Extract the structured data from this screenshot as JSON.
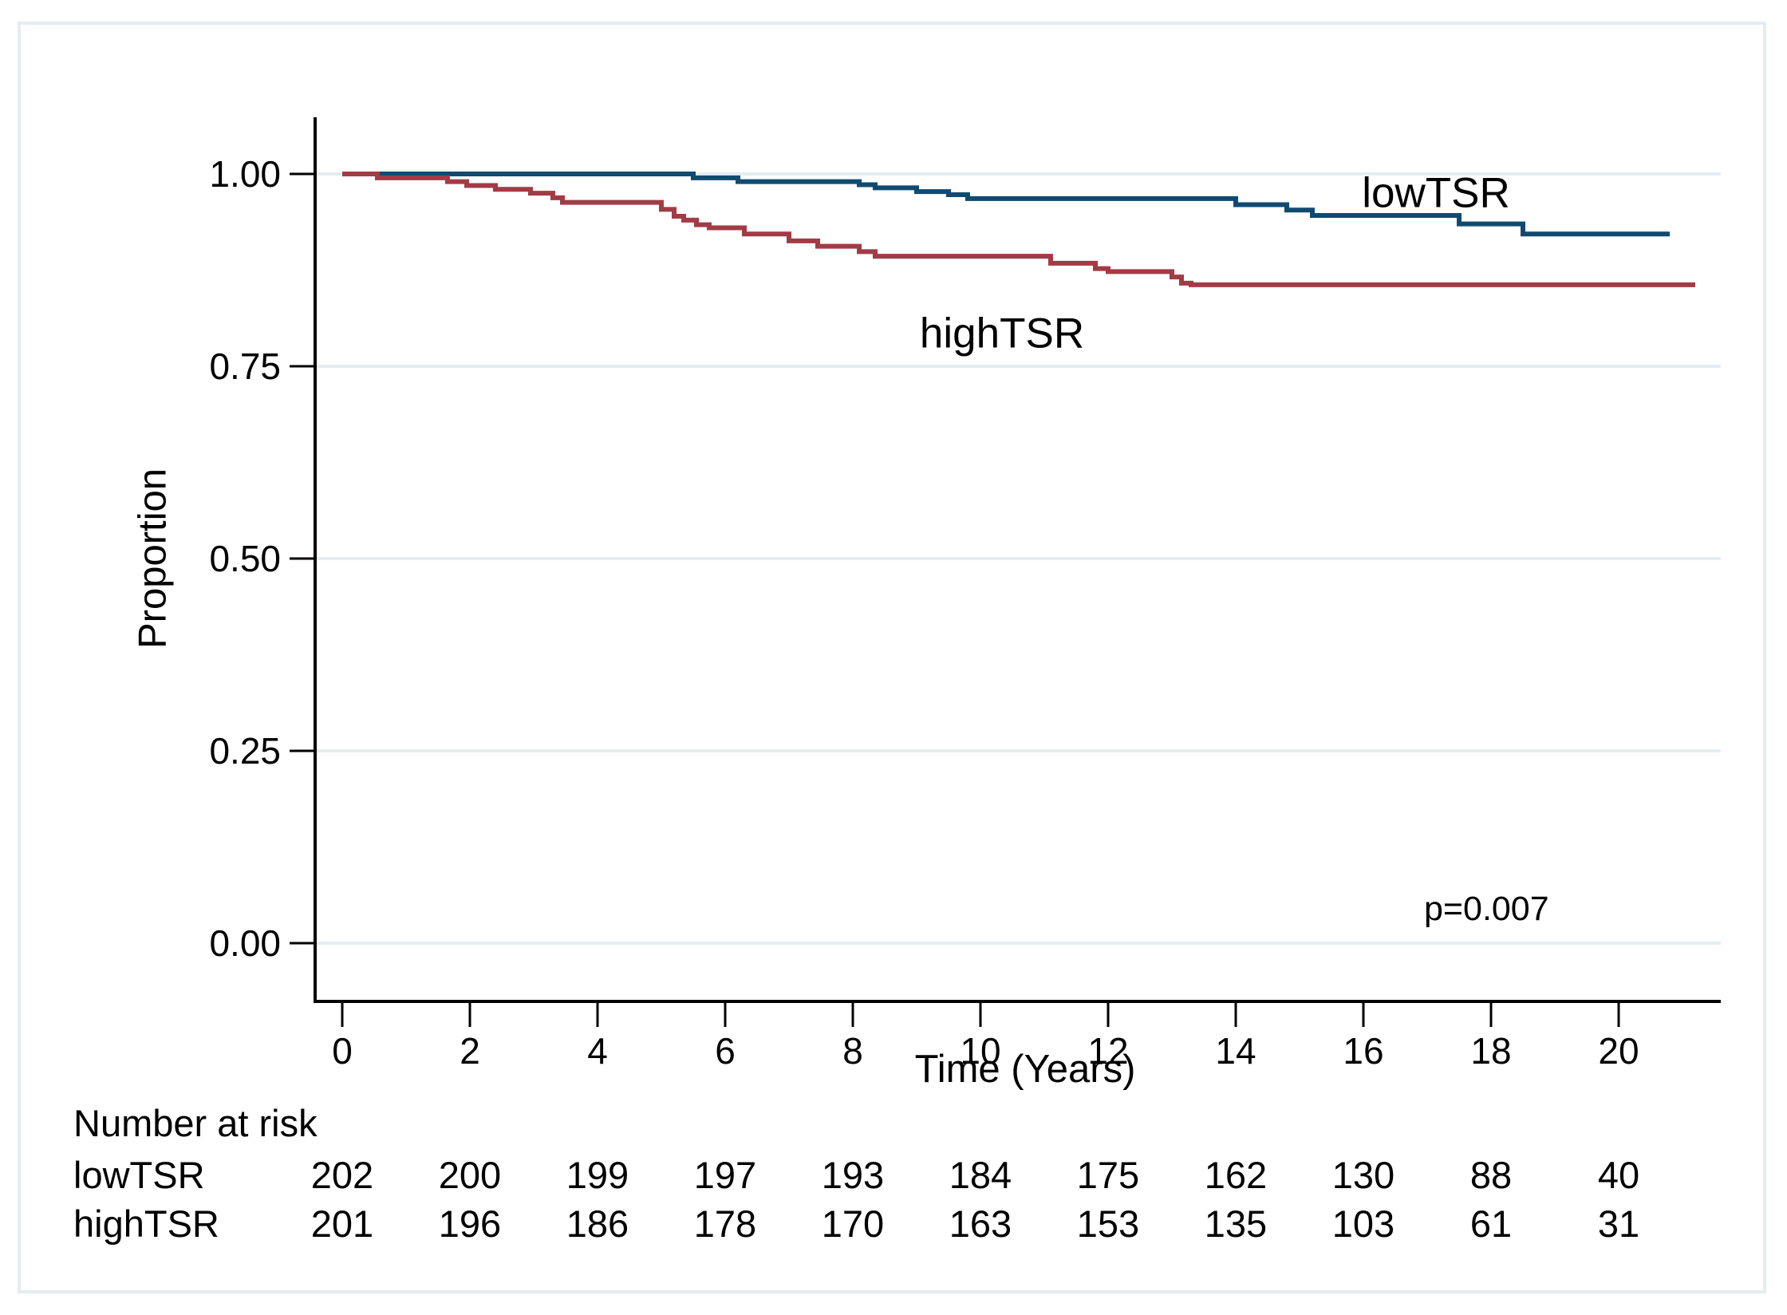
{
  "figure": {
    "background": "#ffffff",
    "frame_border_color": "#e3edf0"
  },
  "chart_data": {
    "type": "line",
    "variant": "kaplan_meier_step_plot",
    "title": "",
    "xlabel": "Time (Years)",
    "ylabel": "Proportion",
    "grid": true,
    "gridline_color": "#e4eef0",
    "axis_color": "#000000",
    "xlim": [
      0,
      21.6
    ],
    "ylim": [
      0,
      1.0
    ],
    "x_ticks": [
      0,
      2,
      4,
      6,
      8,
      10,
      12,
      14,
      16,
      18,
      20
    ],
    "y_ticks": [
      "0.00",
      "0.25",
      "0.50",
      "0.75",
      "1.00"
    ],
    "y_tick_values": [
      0,
      0.25,
      0.5,
      0.75,
      1.0
    ],
    "legend_position": "inline-curve-labels",
    "annotations": [
      {
        "text": "p=0.007",
        "x_year": 17.0,
        "y_value": 0.043
      }
    ],
    "series": [
      {
        "name": "lowTSR",
        "color": "#114a70",
        "steps": [
          [
            0,
            1.0
          ],
          [
            5.5,
            0.995
          ],
          [
            6.2,
            0.99
          ],
          [
            8.1,
            0.986
          ],
          [
            8.35,
            0.982
          ],
          [
            9.0,
            0.977
          ],
          [
            9.5,
            0.973
          ],
          [
            9.8,
            0.968
          ],
          [
            14.0,
            0.96
          ],
          [
            14.8,
            0.953
          ],
          [
            15.2,
            0.946
          ],
          [
            17.5,
            0.935
          ],
          [
            18.5,
            0.922
          ],
          [
            20.8,
            0.922
          ]
        ]
      },
      {
        "name": "highTSR",
        "color": "#a23b45",
        "steps": [
          [
            0,
            1.0
          ],
          [
            0.55,
            0.995
          ],
          [
            1.65,
            0.99
          ],
          [
            1.95,
            0.985
          ],
          [
            2.4,
            0.98
          ],
          [
            2.95,
            0.975
          ],
          [
            3.3,
            0.969
          ],
          [
            3.45,
            0.963
          ],
          [
            5.0,
            0.954
          ],
          [
            5.2,
            0.945
          ],
          [
            5.35,
            0.94
          ],
          [
            5.55,
            0.934
          ],
          [
            5.75,
            0.93
          ],
          [
            6.3,
            0.922
          ],
          [
            7.0,
            0.913
          ],
          [
            7.45,
            0.906
          ],
          [
            8.1,
            0.899
          ],
          [
            8.35,
            0.893
          ],
          [
            11.1,
            0.884
          ],
          [
            11.8,
            0.877
          ],
          [
            12.0,
            0.873
          ],
          [
            13.0,
            0.866
          ],
          [
            13.15,
            0.858
          ],
          [
            13.3,
            0.856
          ],
          [
            21.2,
            0.856
          ]
        ]
      }
    ]
  },
  "labels": {
    "low_curve": "lowTSR",
    "high_curve": "highTSR",
    "p_value": "p=0.007"
  },
  "risk_table": {
    "title": "Number at risk",
    "time_points": [
      0,
      2,
      4,
      6,
      8,
      10,
      12,
      14,
      16,
      18,
      20
    ],
    "rows": [
      {
        "label": "lowTSR",
        "values": [
          202,
          200,
          199,
          197,
          193,
          184,
          175,
          162,
          130,
          88,
          40
        ]
      },
      {
        "label": "highTSR",
        "values": [
          201,
          196,
          186,
          178,
          170,
          163,
          153,
          135,
          103,
          61,
          31
        ]
      }
    ]
  }
}
